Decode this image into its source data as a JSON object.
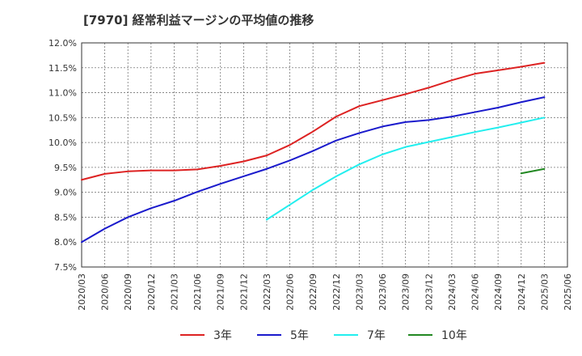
{
  "chart_data": {
    "type": "line",
    "title": "[7970]  経常利益マージンの平均値の推移",
    "xlabel": "",
    "ylabel": "",
    "ylim": [
      7.5,
      12.0
    ],
    "y_ticks": [
      7.5,
      8.0,
      8.5,
      9.0,
      9.5,
      10.0,
      10.5,
      11.0,
      11.5,
      12.0
    ],
    "y_tick_labels": [
      "7.5%",
      "8.0%",
      "8.5%",
      "9.0%",
      "9.5%",
      "10.0%",
      "10.5%",
      "11.0%",
      "11.5%",
      "12.0%"
    ],
    "grid": true,
    "legend_position": "bottom",
    "categories": [
      "2020/03",
      "2020/06",
      "2020/09",
      "2020/12",
      "2021/03",
      "2021/06",
      "2021/09",
      "2021/12",
      "2022/03",
      "2022/06",
      "2022/09",
      "2022/12",
      "2023/03",
      "2023/06",
      "2023/09",
      "2023/12",
      "2024/03",
      "2024/06",
      "2024/09",
      "2024/12",
      "2025/03",
      "2025/06"
    ],
    "series": [
      {
        "name": "3年",
        "color": "#dd2222",
        "values": [
          9.25,
          9.37,
          9.42,
          9.44,
          9.44,
          9.46,
          9.53,
          9.62,
          9.74,
          9.95,
          10.22,
          10.52,
          10.73,
          10.85,
          10.97,
          11.1,
          11.25,
          11.38,
          11.45,
          11.52,
          11.6,
          null
        ]
      },
      {
        "name": "5年",
        "color": "#1a1acc",
        "values": [
          8.0,
          8.27,
          8.5,
          8.68,
          8.83,
          9.01,
          9.17,
          9.32,
          9.47,
          9.64,
          9.83,
          10.04,
          10.19,
          10.32,
          10.41,
          10.45,
          10.52,
          10.61,
          10.7,
          10.81,
          10.91,
          null
        ]
      },
      {
        "name": "7年",
        "color": "#22eeee",
        "values": [
          null,
          null,
          null,
          null,
          null,
          null,
          null,
          null,
          8.45,
          8.75,
          9.05,
          9.32,
          9.56,
          9.76,
          9.91,
          10.01,
          10.11,
          10.21,
          10.3,
          10.4,
          10.5,
          null
        ]
      },
      {
        "name": "10年",
        "color": "#228822",
        "values": [
          null,
          null,
          null,
          null,
          null,
          null,
          null,
          null,
          null,
          null,
          null,
          null,
          null,
          null,
          null,
          null,
          null,
          null,
          null,
          9.38,
          9.47,
          null
        ]
      }
    ]
  }
}
